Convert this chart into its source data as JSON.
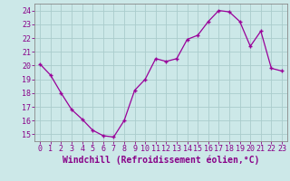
{
  "hours": [
    0,
    1,
    2,
    3,
    4,
    5,
    6,
    7,
    8,
    9,
    10,
    11,
    12,
    13,
    14,
    15,
    16,
    17,
    18,
    19,
    20,
    21,
    22,
    23
  ],
  "values": [
    20.1,
    19.3,
    18.0,
    16.8,
    16.1,
    15.3,
    14.9,
    14.8,
    16.0,
    18.2,
    19.0,
    20.5,
    20.3,
    20.5,
    21.9,
    22.2,
    23.2,
    24.0,
    23.9,
    23.2,
    21.4,
    22.5,
    19.8,
    19.6
  ],
  "line_color": "#990099",
  "marker": "+",
  "bg_color": "#cce8e8",
  "grid_color": "#aacccc",
  "xlabel": "Windchill (Refroidissement éolien,°C)",
  "ylabel_ticks": [
    15,
    16,
    17,
    18,
    19,
    20,
    21,
    22,
    23,
    24
  ],
  "xlim": [
    -0.5,
    23.5
  ],
  "ylim": [
    14.5,
    24.5
  ],
  "axis_fontsize": 6.5,
  "tick_fontsize": 6.0,
  "xlabel_fontsize": 7.0
}
